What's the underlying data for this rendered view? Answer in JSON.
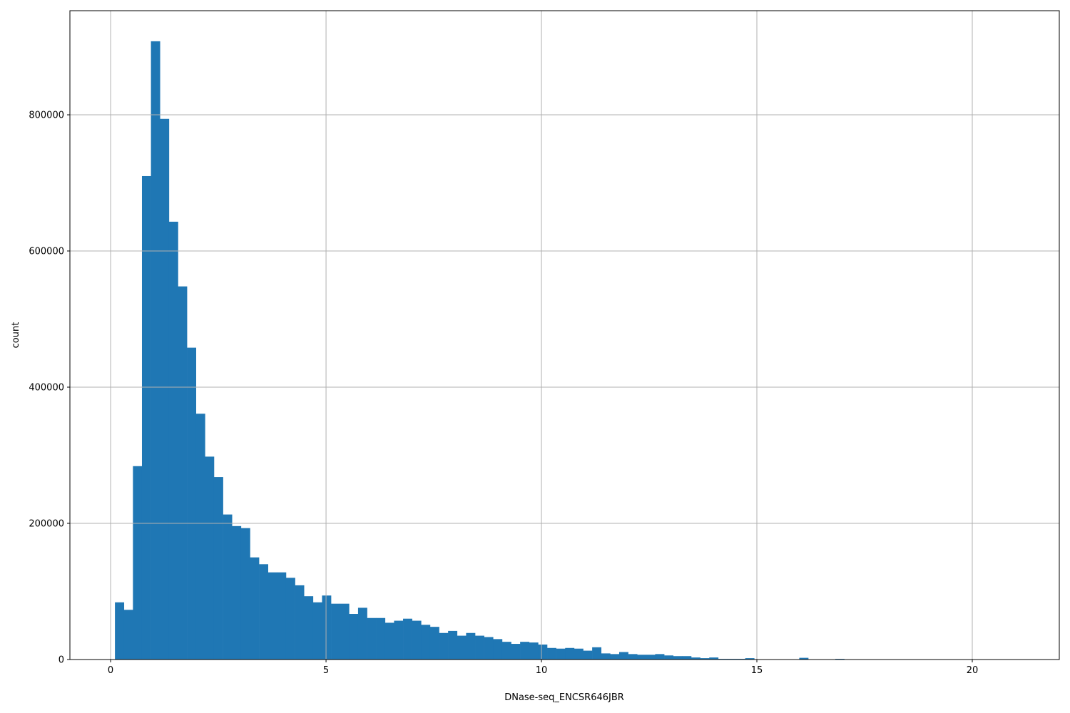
{
  "chart_data": {
    "type": "bar",
    "title": "",
    "xlabel": "DNase-seq_ENCSR646JBR",
    "ylabel": "count",
    "bin_start": 0.1,
    "bin_width": 0.209,
    "values": [
      84000,
      73000,
      284000,
      710000,
      908000,
      794000,
      643000,
      548000,
      458000,
      361000,
      298000,
      268000,
      213000,
      196000,
      193000,
      150000,
      140000,
      128000,
      128000,
      120000,
      109000,
      93000,
      84000,
      94000,
      82000,
      82000,
      67000,
      76000,
      61000,
      61000,
      54000,
      57000,
      60000,
      57000,
      51000,
      48000,
      39000,
      42000,
      35000,
      39000,
      35000,
      33000,
      30000,
      26000,
      23000,
      26000,
      25000,
      22000,
      17000,
      16000,
      17000,
      16000,
      13000,
      18000,
      9000,
      8000,
      11000,
      8000,
      7000,
      7000,
      8000,
      6000,
      5000,
      5000,
      3000,
      2000,
      3000,
      1000,
      1000,
      1000,
      2000,
      300,
      200,
      200,
      200,
      100,
      2500,
      100,
      100,
      100,
      1000,
      50,
      50,
      50,
      50,
      50,
      50,
      50,
      50,
      50,
      50,
      50,
      50,
      50,
      50,
      50,
      50,
      50,
      50,
      50
    ],
    "xlim": [
      -0.945,
      22.02
    ],
    "ylim": [
      0,
      952900
    ],
    "xticks": [
      "0",
      "5",
      "10",
      "15",
      "20"
    ],
    "xtick_values": [
      0,
      5,
      10,
      15,
      20
    ],
    "yticks": [
      "0",
      "200000",
      "400000",
      "600000",
      "800000"
    ],
    "ytick_values": [
      0,
      200000,
      400000,
      600000,
      800000
    ],
    "grid": true,
    "bar_color": "#1f77b4",
    "grid_color": "#b0b0b0"
  }
}
